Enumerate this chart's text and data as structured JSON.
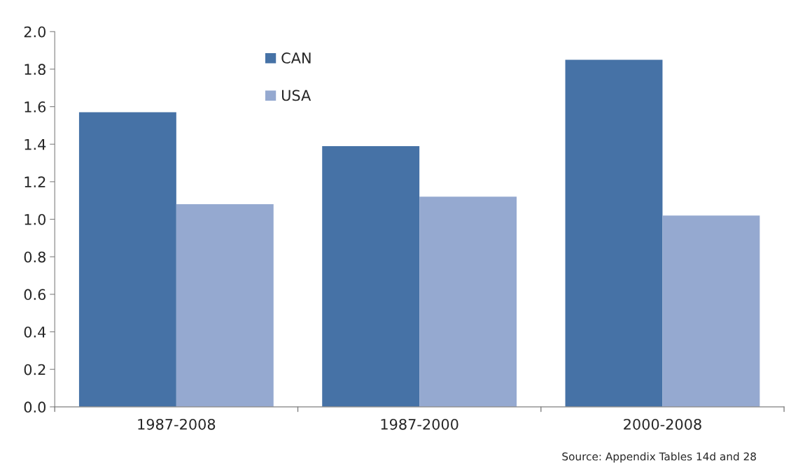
{
  "chart_data": {
    "type": "bar",
    "categories": [
      "1987-2008",
      "1987-2000",
      "2000-2008"
    ],
    "series": [
      {
        "name": "CAN",
        "color": "#4672a6",
        "values": [
          1.57,
          1.39,
          1.85
        ]
      },
      {
        "name": "USA",
        "color": "#95a9d0",
        "values": [
          1.08,
          1.12,
          1.02
        ]
      }
    ],
    "ylim": [
      0,
      2.0
    ],
    "yticks": [
      {
        "value": 0,
        "label": "0.0"
      },
      {
        "value": 0.2,
        "label": "0.2"
      },
      {
        "value": 0.4,
        "label": "0.4"
      },
      {
        "value": 0.6,
        "label": "0.6"
      },
      {
        "value": 0.8,
        "label": "0.8"
      },
      {
        "value": 1.0,
        "label": "1.0"
      },
      {
        "value": 1.2,
        "label": "1.2"
      },
      {
        "value": 1.4,
        "label": "1.4"
      },
      {
        "value": 1.6,
        "label": "1.6"
      },
      {
        "value": 1.8,
        "label": "1.8"
      },
      {
        "value": 2.0,
        "label": "2.0"
      }
    ],
    "grid": false,
    "legend": "top left",
    "annotations": [
      "Source: Appendix Tables 14d and 28"
    ]
  }
}
